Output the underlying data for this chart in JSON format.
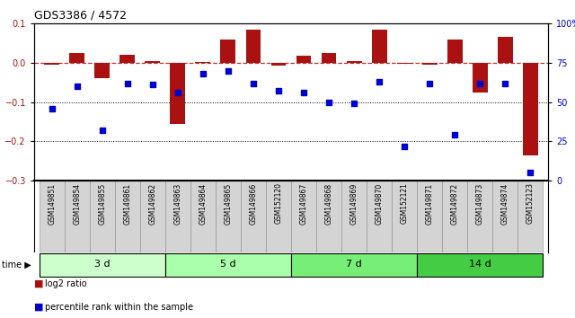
{
  "title": "GDS3386 / 4572",
  "samples": [
    "GSM149851",
    "GSM149854",
    "GSM149855",
    "GSM149861",
    "GSM149862",
    "GSM149863",
    "GSM149864",
    "GSM149865",
    "GSM149866",
    "GSM152120",
    "GSM149867",
    "GSM149868",
    "GSM149869",
    "GSM149870",
    "GSM152121",
    "GSM149871",
    "GSM149872",
    "GSM149873",
    "GSM149874",
    "GSM152123"
  ],
  "log2_ratio": [
    -0.005,
    0.025,
    -0.04,
    0.02,
    0.005,
    -0.155,
    0.002,
    0.06,
    0.085,
    -0.008,
    0.018,
    0.025,
    0.003,
    0.085,
    -0.003,
    -0.005,
    0.06,
    -0.075,
    0.065,
    -0.235
  ],
  "percentile": [
    46,
    60,
    32,
    62,
    61,
    56,
    68,
    70,
    62,
    57,
    56,
    50,
    49,
    63,
    22,
    62,
    29,
    62,
    62,
    5
  ],
  "groups": [
    {
      "label": "3 d",
      "start": 0,
      "end": 5,
      "color": "#ccffcc"
    },
    {
      "label": "5 d",
      "start": 5,
      "end": 10,
      "color": "#aaffaa"
    },
    {
      "label": "7 d",
      "start": 10,
      "end": 15,
      "color": "#77ee77"
    },
    {
      "label": "14 d",
      "start": 15,
      "end": 20,
      "color": "#44cc44"
    }
  ],
  "bar_color": "#aa1111",
  "dot_color": "#0000cc",
  "left_ylim": [
    -0.3,
    0.1
  ],
  "right_ylim": [
    0,
    100
  ],
  "left_yticks": [
    -0.3,
    -0.2,
    -0.1,
    0.0,
    0.1
  ],
  "right_yticks": [
    0,
    25,
    50,
    75,
    100
  ],
  "right_yticklabels": [
    "0",
    "25",
    "50",
    "75",
    "100%"
  ],
  "bg_color": "#ffffff",
  "label_bg": "#d4d4d4",
  "label_border": "#999999"
}
